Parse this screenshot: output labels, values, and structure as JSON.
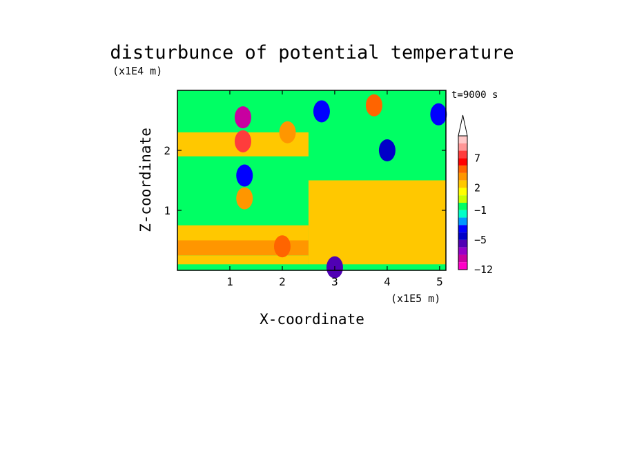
{
  "chart_data": {
    "type": "heatmap",
    "title": "disturbunce of potential temperature",
    "time_label": "t=9000 s",
    "xlabel": "X-coordinate",
    "ylabel": "Z-coordinate",
    "x_unit": "(x1E5 m)",
    "y_unit": "(x1E4 m)",
    "xlim": [
      0,
      5.12
    ],
    "ylim": [
      0,
      3.0
    ],
    "x_ticks": [
      "1",
      "2",
      "3",
      "4",
      "5"
    ],
    "x_tick_values": [
      1,
      2,
      3,
      4,
      5
    ],
    "y_ticks": [
      "1",
      "2"
    ],
    "y_tick_values": [
      1,
      2
    ],
    "colorbar": {
      "labels": [
        "7",
        "2",
        "−1",
        "−5",
        "−12"
      ],
      "label_values": [
        7,
        2,
        -1,
        -5,
        -12
      ],
      "levels_high_to_low": [
        10,
        9,
        8,
        7,
        5,
        4,
        3,
        2,
        1,
        0,
        -1,
        -2,
        -3,
        -4,
        -5,
        -6,
        -8,
        -10,
        -12
      ],
      "colors_high_to_low": [
        "#ffc8c8",
        "#ff9696",
        "#ff3c3c",
        "#ff0000",
        "#ff6400",
        "#ff9600",
        "#ffc800",
        "#ffff00",
        "#c8ff00",
        "#00ff64",
        "#00ffc8",
        "#0096ff",
        "#0000ff",
        "#0000c8",
        "#5000b4",
        "#9600c8",
        "#c800a0",
        "#ff00c8"
      ]
    },
    "features": [
      {
        "x": 1.25,
        "z": 2.55,
        "value": -10
      },
      {
        "x": 1.25,
        "z": 2.15,
        "value": 7
      },
      {
        "x": 1.28,
        "z": 1.58,
        "value": -4
      },
      {
        "x": 1.28,
        "z": 1.2,
        "value": 3
      },
      {
        "x": 2.75,
        "z": 2.65,
        "value": -4
      },
      {
        "x": 4.0,
        "z": 2.0,
        "value": -5
      },
      {
        "x": 3.75,
        "z": 2.75,
        "value": 4
      },
      {
        "x": 4.98,
        "z": 2.6,
        "value": -4
      },
      {
        "x": 2.1,
        "z": 2.3,
        "value": 3
      },
      {
        "x": 3.9,
        "z": 1.0,
        "value": 2
      },
      {
        "x": 2.0,
        "z": 0.4,
        "value": 4
      },
      {
        "x": 3.0,
        "z": 0.05,
        "value": -6
      }
    ]
  }
}
